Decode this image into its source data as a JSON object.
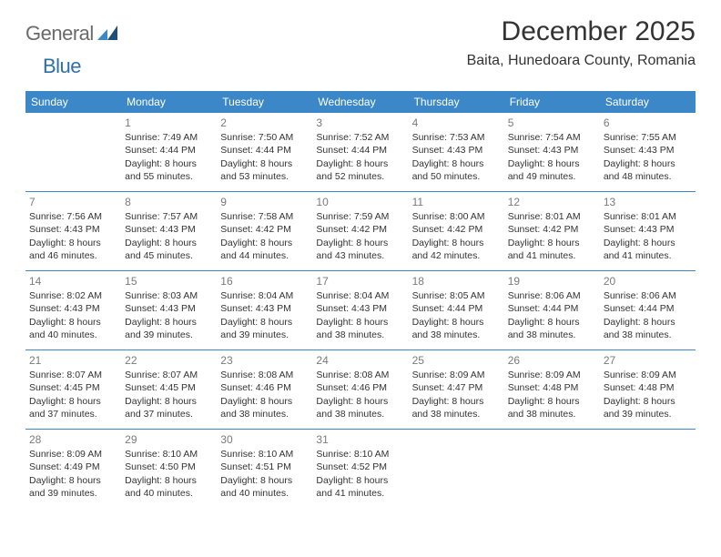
{
  "brand": {
    "part1": "General",
    "part2": "Blue"
  },
  "title": "December 2025",
  "location": "Baita, Hunedoara County, Romania",
  "colors": {
    "header_bg": "#3c87c7",
    "header_text": "#ffffff",
    "logo_gray": "#6a6a6a",
    "logo_blue": "#2f6fa8",
    "day_number": "#7a7a7a",
    "text": "#333333",
    "divider": "#3c87c7"
  },
  "typography": {
    "title_fontsize": 30,
    "location_fontsize": 16,
    "header_fontsize": 12,
    "daynum_fontsize": 12,
    "body_fontsize": 10.5
  },
  "day_headers": [
    "Sunday",
    "Monday",
    "Tuesday",
    "Wednesday",
    "Thursday",
    "Friday",
    "Saturday"
  ],
  "weeks": [
    [
      null,
      {
        "n": "1",
        "sunrise": "7:49 AM",
        "sunset": "4:44 PM",
        "daylight": "8 hours and 55 minutes."
      },
      {
        "n": "2",
        "sunrise": "7:50 AM",
        "sunset": "4:44 PM",
        "daylight": "8 hours and 53 minutes."
      },
      {
        "n": "3",
        "sunrise": "7:52 AM",
        "sunset": "4:44 PM",
        "daylight": "8 hours and 52 minutes."
      },
      {
        "n": "4",
        "sunrise": "7:53 AM",
        "sunset": "4:43 PM",
        "daylight": "8 hours and 50 minutes."
      },
      {
        "n": "5",
        "sunrise": "7:54 AM",
        "sunset": "4:43 PM",
        "daylight": "8 hours and 49 minutes."
      },
      {
        "n": "6",
        "sunrise": "7:55 AM",
        "sunset": "4:43 PM",
        "daylight": "8 hours and 48 minutes."
      }
    ],
    [
      {
        "n": "7",
        "sunrise": "7:56 AM",
        "sunset": "4:43 PM",
        "daylight": "8 hours and 46 minutes."
      },
      {
        "n": "8",
        "sunrise": "7:57 AM",
        "sunset": "4:43 PM",
        "daylight": "8 hours and 45 minutes."
      },
      {
        "n": "9",
        "sunrise": "7:58 AM",
        "sunset": "4:42 PM",
        "daylight": "8 hours and 44 minutes."
      },
      {
        "n": "10",
        "sunrise": "7:59 AM",
        "sunset": "4:42 PM",
        "daylight": "8 hours and 43 minutes."
      },
      {
        "n": "11",
        "sunrise": "8:00 AM",
        "sunset": "4:42 PM",
        "daylight": "8 hours and 42 minutes."
      },
      {
        "n": "12",
        "sunrise": "8:01 AM",
        "sunset": "4:42 PM",
        "daylight": "8 hours and 41 minutes."
      },
      {
        "n": "13",
        "sunrise": "8:01 AM",
        "sunset": "4:43 PM",
        "daylight": "8 hours and 41 minutes."
      }
    ],
    [
      {
        "n": "14",
        "sunrise": "8:02 AM",
        "sunset": "4:43 PM",
        "daylight": "8 hours and 40 minutes."
      },
      {
        "n": "15",
        "sunrise": "8:03 AM",
        "sunset": "4:43 PM",
        "daylight": "8 hours and 39 minutes."
      },
      {
        "n": "16",
        "sunrise": "8:04 AM",
        "sunset": "4:43 PM",
        "daylight": "8 hours and 39 minutes."
      },
      {
        "n": "17",
        "sunrise": "8:04 AM",
        "sunset": "4:43 PM",
        "daylight": "8 hours and 38 minutes."
      },
      {
        "n": "18",
        "sunrise": "8:05 AM",
        "sunset": "4:44 PM",
        "daylight": "8 hours and 38 minutes."
      },
      {
        "n": "19",
        "sunrise": "8:06 AM",
        "sunset": "4:44 PM",
        "daylight": "8 hours and 38 minutes."
      },
      {
        "n": "20",
        "sunrise": "8:06 AM",
        "sunset": "4:44 PM",
        "daylight": "8 hours and 38 minutes."
      }
    ],
    [
      {
        "n": "21",
        "sunrise": "8:07 AM",
        "sunset": "4:45 PM",
        "daylight": "8 hours and 37 minutes."
      },
      {
        "n": "22",
        "sunrise": "8:07 AM",
        "sunset": "4:45 PM",
        "daylight": "8 hours and 37 minutes."
      },
      {
        "n": "23",
        "sunrise": "8:08 AM",
        "sunset": "4:46 PM",
        "daylight": "8 hours and 38 minutes."
      },
      {
        "n": "24",
        "sunrise": "8:08 AM",
        "sunset": "4:46 PM",
        "daylight": "8 hours and 38 minutes."
      },
      {
        "n": "25",
        "sunrise": "8:09 AM",
        "sunset": "4:47 PM",
        "daylight": "8 hours and 38 minutes."
      },
      {
        "n": "26",
        "sunrise": "8:09 AM",
        "sunset": "4:48 PM",
        "daylight": "8 hours and 38 minutes."
      },
      {
        "n": "27",
        "sunrise": "8:09 AM",
        "sunset": "4:48 PM",
        "daylight": "8 hours and 39 minutes."
      }
    ],
    [
      {
        "n": "28",
        "sunrise": "8:09 AM",
        "sunset": "4:49 PM",
        "daylight": "8 hours and 39 minutes."
      },
      {
        "n": "29",
        "sunrise": "8:10 AM",
        "sunset": "4:50 PM",
        "daylight": "8 hours and 40 minutes."
      },
      {
        "n": "30",
        "sunrise": "8:10 AM",
        "sunset": "4:51 PM",
        "daylight": "8 hours and 40 minutes."
      },
      {
        "n": "31",
        "sunrise": "8:10 AM",
        "sunset": "4:52 PM",
        "daylight": "8 hours and 41 minutes."
      },
      null,
      null,
      null
    ]
  ],
  "labels": {
    "sunrise_prefix": "Sunrise: ",
    "sunset_prefix": "Sunset: ",
    "daylight_prefix": "Daylight: "
  }
}
